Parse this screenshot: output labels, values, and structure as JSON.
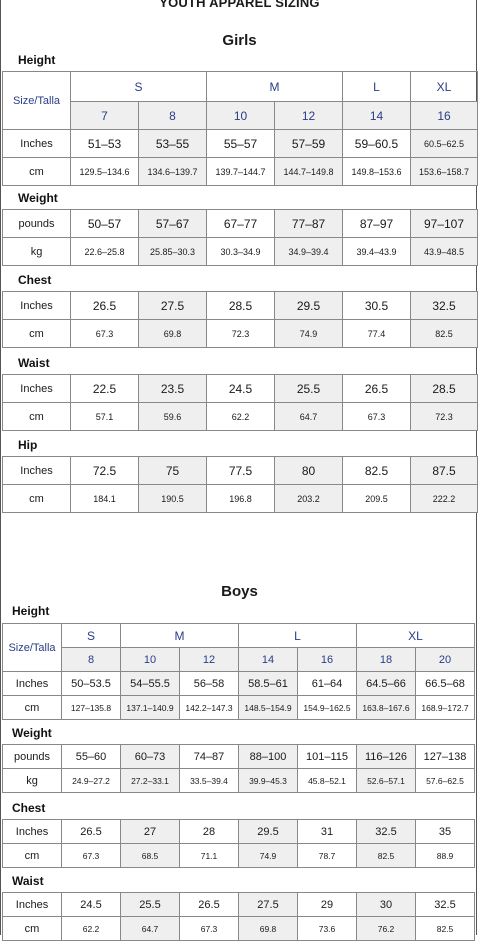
{
  "document": {
    "title": "YOUTH APPAREL SIZING"
  },
  "girls": {
    "title": "Girls",
    "size_label": "Size/Talla",
    "sizes": [
      {
        "letter": "S",
        "span": 2
      },
      {
        "letter": "M",
        "span": 2
      },
      {
        "letter": "L",
        "span": 1
      },
      {
        "letter": "XL",
        "span": 1
      }
    ],
    "numbers": [
      "7",
      "8",
      "10",
      "12",
      "14",
      "16"
    ],
    "sections": [
      {
        "label": "Height",
        "rows": [
          {
            "unit": "Inches",
            "values": [
              "51–53",
              "53–55",
              "55–57",
              "57–59",
              "59–60.5",
              "60.5–62.5"
            ]
          },
          {
            "unit": "cm",
            "values": [
              "129.5–134.6",
              "134.6–139.7",
              "139.7–144.7",
              "144.7–149.8",
              "149.8–153.6",
              "153.6–158.7"
            ]
          }
        ]
      },
      {
        "label": "Weight",
        "rows": [
          {
            "unit": "pounds",
            "values": [
              "50–57",
              "57–67",
              "67–77",
              "77–87",
              "87–97",
              "97–107"
            ]
          },
          {
            "unit": "kg",
            "values": [
              "22.6–25.8",
              "25.85–30.3",
              "30.3–34.9",
              "34.9–39.4",
              "39.4–43.9",
              "43.9–48.5"
            ]
          }
        ]
      },
      {
        "label": "Chest",
        "rows": [
          {
            "unit": "Inches",
            "values": [
              "26.5",
              "27.5",
              "28.5",
              "29.5",
              "30.5",
              "32.5"
            ]
          },
          {
            "unit": "cm",
            "values": [
              "67.3",
              "69.8",
              "72.3",
              "74.9",
              "77.4",
              "82.5"
            ]
          }
        ]
      },
      {
        "label": "Waist",
        "rows": [
          {
            "unit": "Inches",
            "values": [
              "22.5",
              "23.5",
              "24.5",
              "25.5",
              "26.5",
              "28.5"
            ]
          },
          {
            "unit": "cm",
            "values": [
              "57.1",
              "59.6",
              "62.2",
              "64.7",
              "67.3",
              "72.3"
            ]
          }
        ]
      },
      {
        "label": "Hip",
        "rows": [
          {
            "unit": "Inches",
            "values": [
              "72.5",
              "75",
              "77.5",
              "80",
              "82.5",
              "87.5"
            ]
          },
          {
            "unit": "cm",
            "values": [
              "184.1",
              "190.5",
              "196.8",
              "203.2",
              "209.5",
              "222.2"
            ]
          }
        ]
      }
    ]
  },
  "boys": {
    "title": "Boys",
    "size_label": "Size/Talla",
    "sizes": [
      {
        "letter": "S",
        "span": 1
      },
      {
        "letter": "M",
        "span": 2
      },
      {
        "letter": "L",
        "span": 2
      },
      {
        "letter": "XL",
        "span": 2
      }
    ],
    "numbers": [
      "8",
      "10",
      "12",
      "14",
      "16",
      "18",
      "20"
    ],
    "sections": [
      {
        "label": "Height",
        "rows": [
          {
            "unit": "Inches",
            "values": [
              "50–53.5",
              "54–55.5",
              "56–58",
              "58.5–61",
              "61–64",
              "64.5–66",
              "66.5–68"
            ]
          },
          {
            "unit": "cm",
            "values": [
              "127–135.8",
              "137.1–140.9",
              "142.2–147.3",
              "148.5–154.9",
              "154.9–162.5",
              "163.8–167.6",
              "168.9–172.7"
            ]
          }
        ]
      },
      {
        "label": "Weight",
        "rows": [
          {
            "unit": "pounds",
            "values": [
              "55–60",
              "60–73",
              "74–87",
              "88–100",
              "101–115",
              "116–126",
              "127–138"
            ]
          },
          {
            "unit": "kg",
            "values": [
              "24.9–27.2",
              "27.2–33.1",
              "33.5–39.4",
              "39.9–45.3",
              "45.8–52.1",
              "52.6–57.1",
              "57.6–62.5"
            ]
          }
        ]
      },
      {
        "label": "Chest",
        "rows": [
          {
            "unit": "Inches",
            "values": [
              "26.5",
              "27",
              "28",
              "29.5",
              "31",
              "32.5",
              "35"
            ]
          },
          {
            "unit": "cm",
            "values": [
              "67.3",
              "68.5",
              "71.1",
              "74.9",
              "78.7",
              "82.5",
              "88.9"
            ]
          }
        ]
      },
      {
        "label": "Waist",
        "rows": [
          {
            "unit": "Inches",
            "values": [
              "24.5",
              "25.5",
              "26.5",
              "27.5",
              "29",
              "30",
              "32.5"
            ]
          },
          {
            "unit": "cm",
            "values": [
              "62.2",
              "64.7",
              "67.3",
              "69.8",
              "73.6",
              "76.2",
              "82.5"
            ]
          }
        ]
      }
    ]
  },
  "colors": {
    "size_text": "#2b3d87",
    "shade": "#efefef",
    "border": "#888888"
  }
}
